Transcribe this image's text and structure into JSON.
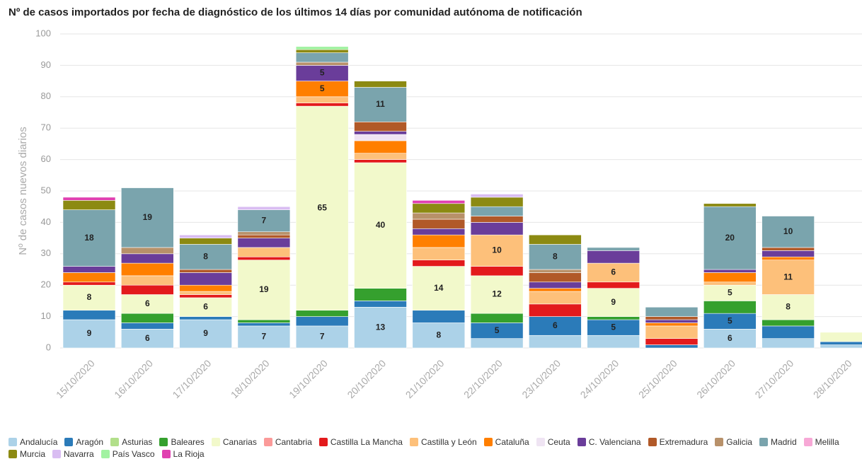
{
  "chart_data": {
    "type": "stacked-bar",
    "title": "Nº de casos importados por fecha de diagnóstico de los últimos 14 días por comunidad autónoma de notificación",
    "ylabel": "Nº de casos nuevos diarios",
    "categories": [
      "15/10/2020",
      "16/10/2020",
      "17/10/2020",
      "18/10/2020",
      "19/10/2020",
      "20/10/2020",
      "21/10/2020",
      "22/10/2020",
      "23/10/2020",
      "24/10/2020",
      "25/10/2020",
      "26/10/2020",
      "27/10/2020",
      "28/10/2020"
    ],
    "ylim": [
      0,
      100
    ],
    "yticks": [
      0,
      10,
      20,
      30,
      40,
      50,
      60,
      70,
      80,
      90,
      100
    ],
    "grid": true,
    "series": [
      {
        "name": "Andalucía",
        "color": "#acd2e8",
        "values": [
          9,
          6,
          9,
          7,
          7,
          13,
          8,
          3,
          4,
          4,
          0,
          6,
          3,
          1
        ]
      },
      {
        "name": "Aragón",
        "color": "#2b7bb9",
        "values": [
          3,
          2,
          1,
          1,
          3,
          2,
          4,
          5,
          6,
          5,
          1,
          5,
          4,
          1
        ]
      },
      {
        "name": "Asturias",
        "color": "#b2df8a",
        "values": [
          0,
          0,
          0,
          0,
          0,
          0,
          0,
          0,
          0,
          0,
          0,
          0,
          0,
          0
        ]
      },
      {
        "name": "Baleares",
        "color": "#35a02e",
        "values": [
          0,
          3,
          0,
          1,
          2,
          4,
          0,
          3,
          0,
          1,
          0,
          4,
          2,
          0
        ]
      },
      {
        "name": "Canarias",
        "color": "#f2f9cb",
        "values": [
          8,
          6,
          6,
          19,
          65,
          40,
          14,
          12,
          0,
          9,
          0,
          5,
          8,
          3
        ]
      },
      {
        "name": "Cantabria",
        "color": "#fb9a99",
        "values": [
          0,
          0,
          0,
          0,
          0,
          0,
          0,
          0,
          0,
          0,
          0,
          0,
          0,
          0
        ]
      },
      {
        "name": "Castilla La Mancha",
        "color": "#e31a1c",
        "values": [
          1,
          3,
          1,
          1,
          1,
          1,
          2,
          3,
          4,
          2,
          2,
          0,
          0,
          0
        ]
      },
      {
        "name": "Castilla y León",
        "color": "#fdc07a",
        "values": [
          0,
          3,
          1,
          3,
          2,
          2,
          4,
          10,
          4,
          6,
          4,
          1,
          11,
          0
        ]
      },
      {
        "name": "Cataluña",
        "color": "#ff7f00",
        "values": [
          3,
          4,
          2,
          0,
          5,
          4,
          4,
          0,
          1,
          0,
          1,
          3,
          1,
          0
        ]
      },
      {
        "name": "Ceuta",
        "color": "#efe4f3",
        "values": [
          0,
          0,
          0,
          0,
          0,
          2,
          0,
          0,
          0,
          0,
          0,
          0,
          0,
          0
        ]
      },
      {
        "name": "C. Valenciana",
        "color": "#6a3d9a",
        "values": [
          2,
          3,
          4,
          3,
          5,
          1,
          2,
          4,
          2,
          4,
          1,
          1,
          2,
          0
        ]
      },
      {
        "name": "Extremadura",
        "color": "#b15928",
        "values": [
          0,
          0,
          1,
          1,
          0,
          3,
          3,
          2,
          3,
          0,
          1,
          0,
          1,
          0
        ]
      },
      {
        "name": "Galicia",
        "color": "#b8916a",
        "values": [
          0,
          2,
          0,
          1,
          1,
          0,
          2,
          0,
          1,
          0,
          0,
          0,
          0,
          0
        ]
      },
      {
        "name": "Madrid",
        "color": "#7aa4ad",
        "values": [
          18,
          19,
          8,
          7,
          3,
          11,
          0,
          3,
          8,
          1,
          3,
          20,
          10,
          0
        ]
      },
      {
        "name": "Melilla",
        "color": "#f7a8d6",
        "values": [
          0,
          0,
          0,
          0,
          0,
          0,
          0,
          0,
          0,
          0,
          0,
          0,
          0,
          0
        ]
      },
      {
        "name": "Murcia",
        "color": "#8c8a12",
        "values": [
          3,
          0,
          2,
          0,
          1,
          2,
          3,
          3,
          3,
          0,
          0,
          1,
          0,
          0
        ]
      },
      {
        "name": "Navarra",
        "color": "#d9bdf2",
        "values": [
          0,
          0,
          1,
          1,
          0,
          0,
          0,
          1,
          0,
          0,
          0,
          0,
          0,
          0
        ]
      },
      {
        "name": "País Vasco",
        "color": "#a2f2a2",
        "values": [
          0,
          0,
          0,
          0,
          1,
          0,
          0,
          0,
          0,
          0,
          0,
          0,
          0,
          0
        ]
      },
      {
        "name": "La Rioja",
        "color": "#e040b0",
        "values": [
          1,
          0,
          0,
          0,
          0,
          0,
          1,
          0,
          0,
          0,
          0,
          0,
          0,
          0
        ]
      }
    ]
  }
}
